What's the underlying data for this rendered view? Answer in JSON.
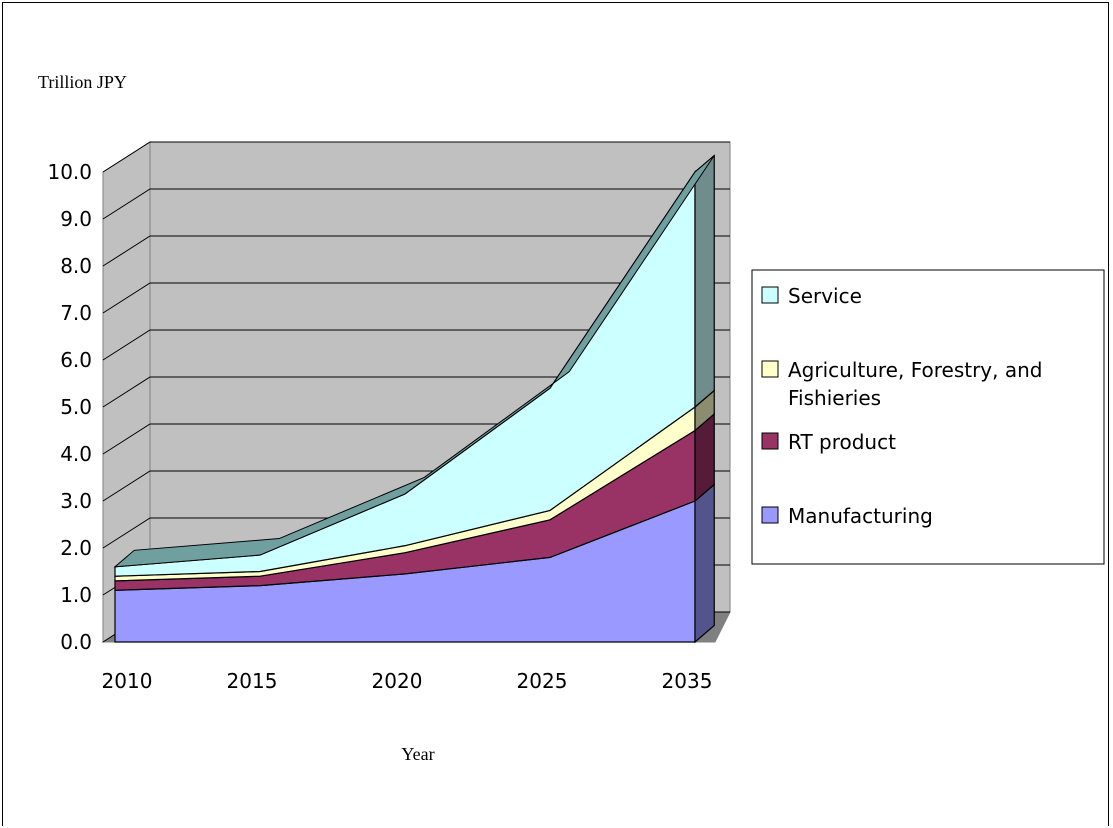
{
  "chart_data": {
    "type": "area",
    "stacked": true,
    "three_d": true,
    "ylabel": "Trillion JPY",
    "xlabel": "Year",
    "x": [
      "2010",
      "2015",
      "2020",
      "2025",
      "2035"
    ],
    "ylim": [
      0,
      10
    ],
    "yticks": [
      "0.0",
      "1.0",
      "2.0",
      "3.0",
      "4.0",
      "5.0",
      "6.0",
      "7.0",
      "8.0",
      "9.0",
      "10.0"
    ],
    "grid": true,
    "legend_position": "right",
    "series": [
      {
        "name": "Manufacturing",
        "color": "#9999ff",
        "values": [
          1.1,
          1.2,
          1.45,
          1.8,
          3.0
        ]
      },
      {
        "name": "RT product",
        "color": "#993366",
        "values": [
          0.2,
          0.2,
          0.45,
          0.8,
          1.5
        ]
      },
      {
        "name": "Agriculture, Forestry, and Fishieries",
        "color": "#ffffcc",
        "values": [
          0.1,
          0.1,
          0.15,
          0.2,
          0.5
        ]
      },
      {
        "name": "Service",
        "color": "#ccffff",
        "values": [
          0.2,
          0.35,
          1.1,
          2.6,
          5.0
        ]
      }
    ],
    "legend_order": [
      "Service",
      "Agriculture, Forestry, and Fishieries",
      "RT product",
      "Manufacturing"
    ]
  }
}
